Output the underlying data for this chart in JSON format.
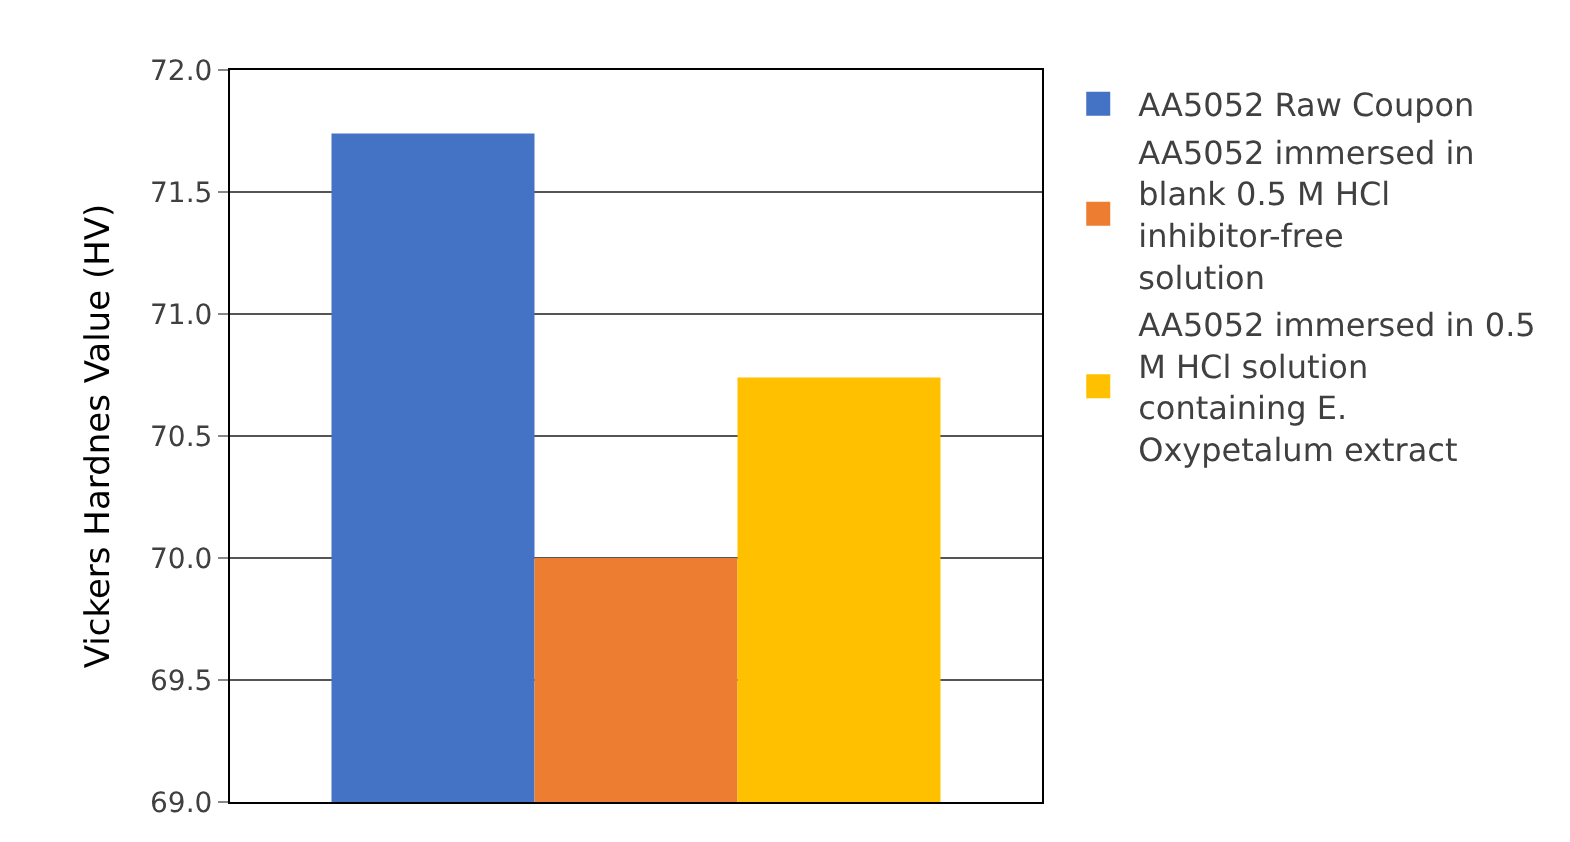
{
  "chart_data": {
    "type": "bar",
    "ylabel": "Vickers Hardnes Value (HV)",
    "categories": [
      null
    ],
    "series": [
      {
        "name": "AA5052 Raw Coupon",
        "color": "#4472c4",
        "values": [
          71.74
        ]
      },
      {
        "name": "AA5052 immersed in blank 0.5 M HCl inhibitor-free solution",
        "color": "#ed7d31",
        "values": [
          70.0
        ]
      },
      {
        "name": "AA5052 immersed in 0.5 M HCl solution containing E. Oxypetalum extract",
        "color": "#ffc000",
        "values": [
          70.74
        ]
      }
    ],
    "ylim": [
      69.0,
      72.0
    ],
    "yticks": [
      {
        "value": 69.0,
        "label": "69.0"
      },
      {
        "value": 69.5,
        "label": "69.5"
      },
      {
        "value": 70.0,
        "label": "70.0"
      },
      {
        "value": 70.5,
        "label": "70.5"
      },
      {
        "value": 71.0,
        "label": "71.0"
      },
      {
        "value": 71.5,
        "label": "71.5"
      },
      {
        "value": 72.0,
        "label": "72.0"
      }
    ],
    "grid": "y",
    "legend": "right"
  }
}
